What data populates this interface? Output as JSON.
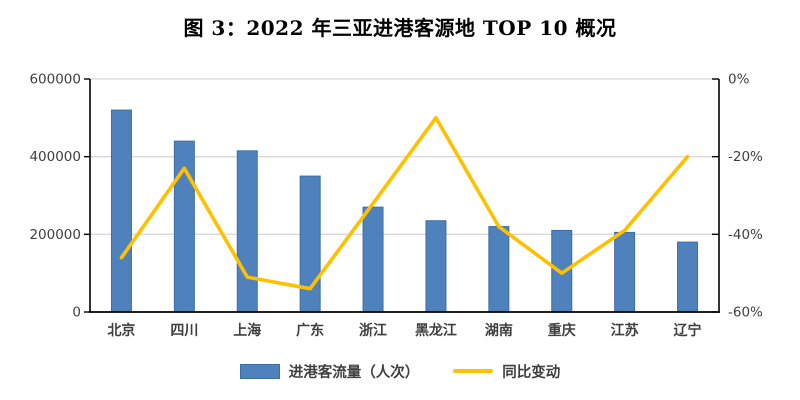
{
  "title": "图 3：2022 年三亚进港客源地 TOP 10 概况",
  "chart_data": {
    "type": "bar+line combo",
    "title": "图 3：2022 年三亚进港客源地 TOP 10 概况",
    "categories": [
      "北京",
      "四川",
      "上海",
      "广东",
      "浙江",
      "黑龙江",
      "湖南",
      "重庆",
      "江苏",
      "辽宁"
    ],
    "series": [
      {
        "name": "进港客流量（人次）",
        "type": "bar",
        "axis": "left",
        "color": "#4F81BD",
        "border_color": "#3D6EA5",
        "values": [
          520000,
          440000,
          415000,
          350000,
          270000,
          235000,
          220000,
          210000,
          205000,
          180000
        ]
      },
      {
        "name": "同比变动",
        "type": "line",
        "axis": "right",
        "unit": "%",
        "color": "#FFC000",
        "values": [
          -46,
          -23,
          -51,
          -54,
          -32,
          -10,
          -38,
          -50,
          -39,
          -20
        ]
      }
    ],
    "left_axis": {
      "min": 0,
      "max": 600000,
      "step": 200000,
      "tick_labels": [
        "0",
        "200000",
        "400000",
        "600000"
      ]
    },
    "right_axis": {
      "min": -60,
      "max": 0,
      "step": 20,
      "tick_labels": [
        "-60%",
        "-40%",
        "-20%",
        "0%"
      ]
    },
    "grid": true,
    "legend_position": "bottom",
    "colors": {
      "grid_line": "#d9d9d9",
      "axis_line": "#000000",
      "tick_text": "#404040",
      "category_text": "#3f3f3f",
      "title_text": "#000000"
    }
  }
}
